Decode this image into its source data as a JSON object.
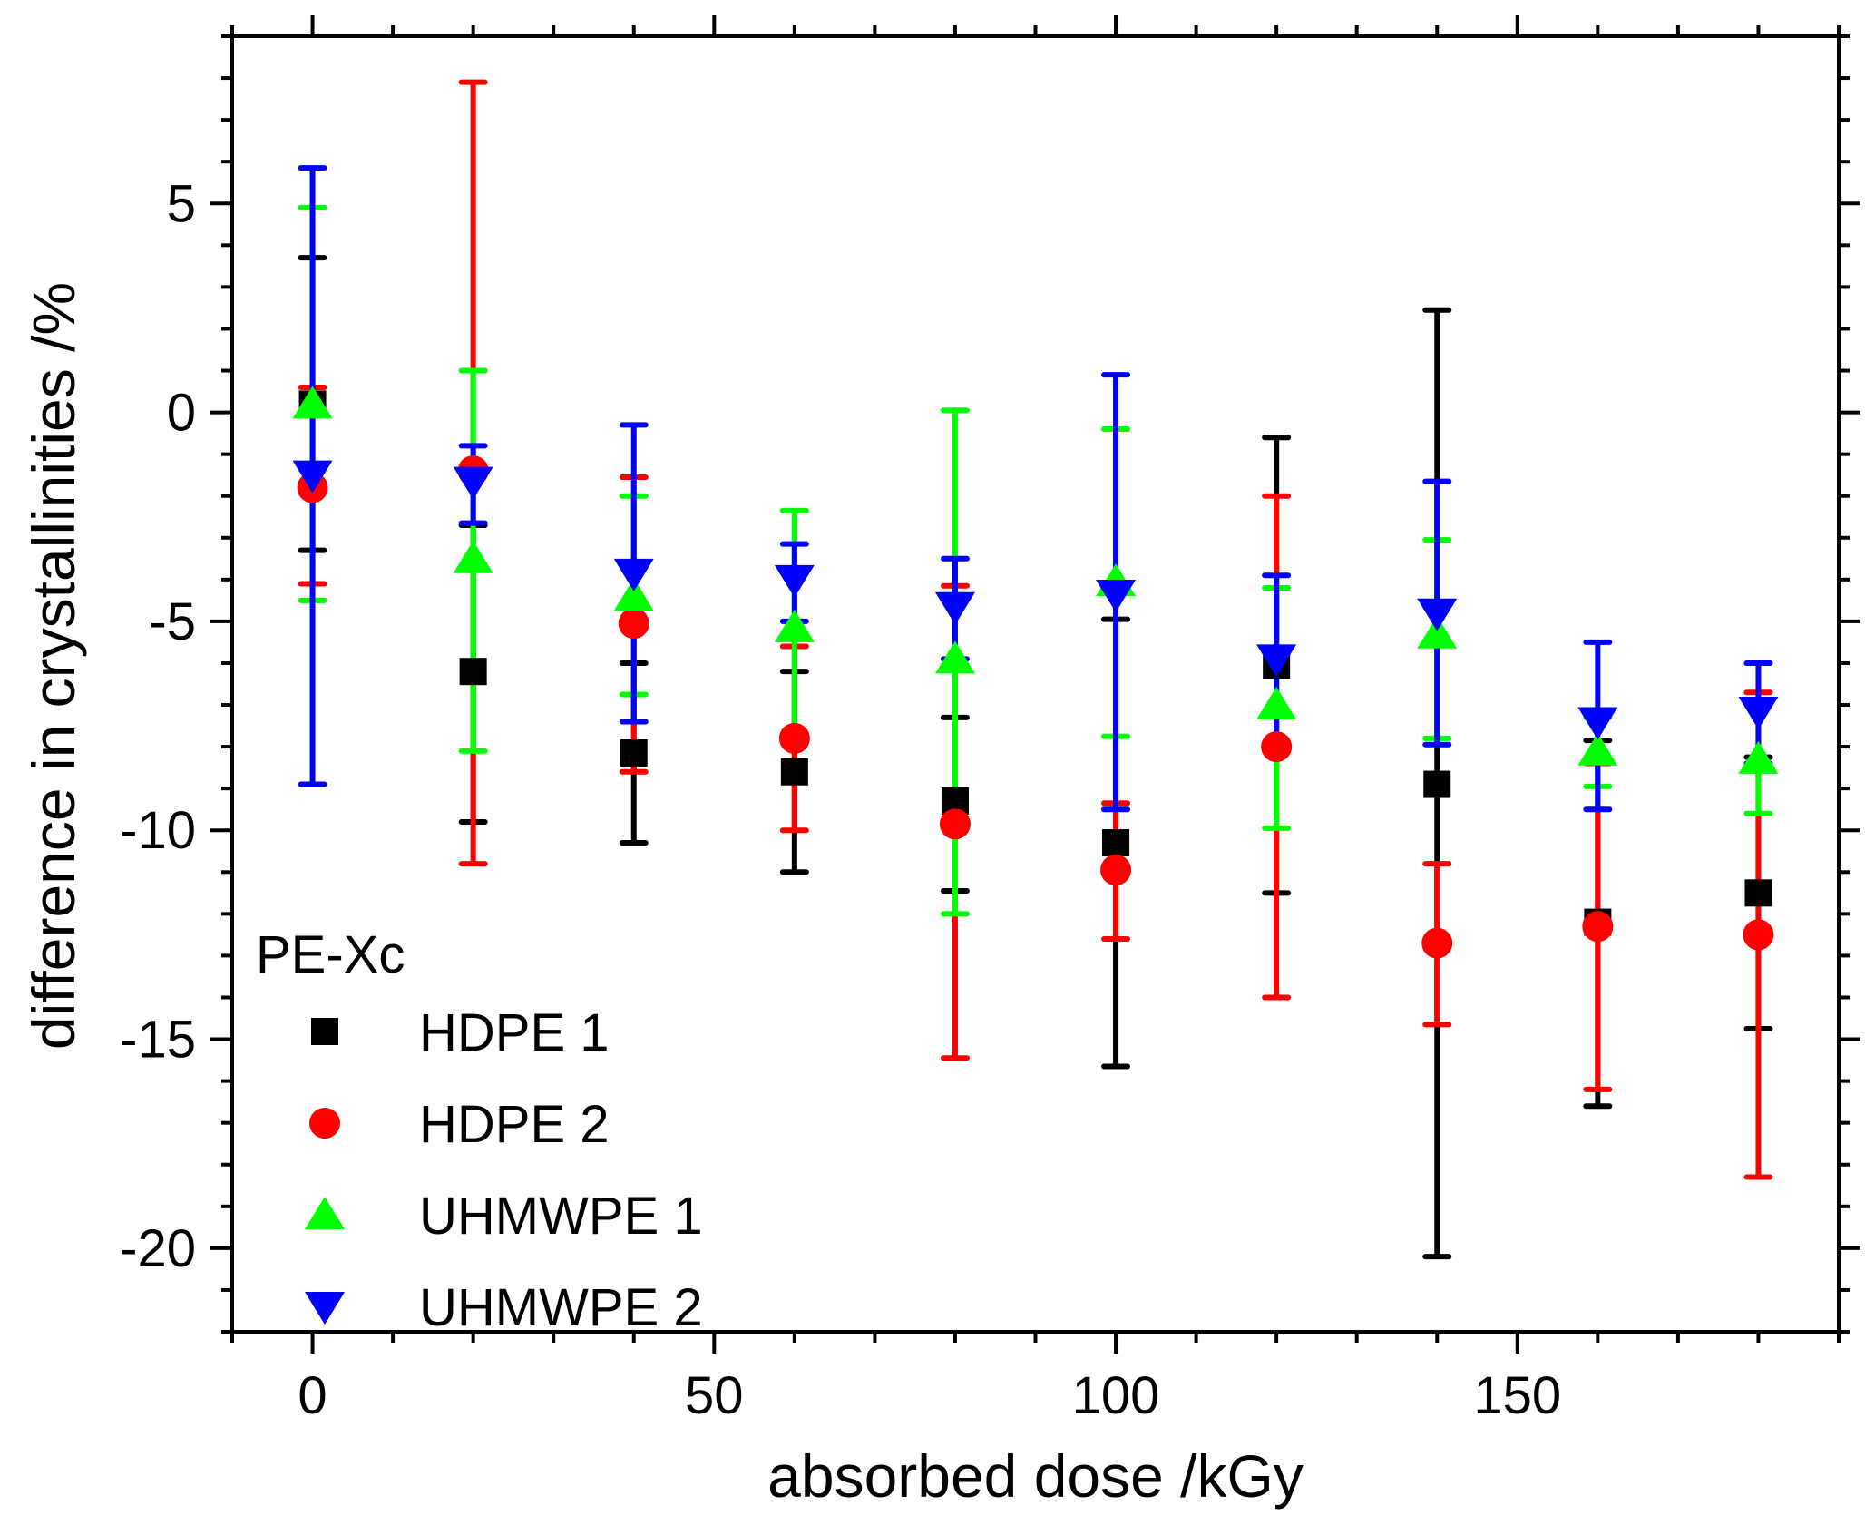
{
  "chart_data": {
    "type": "scatter",
    "title": "",
    "xlabel": "absorbed dose /kGy",
    "ylabel": "difference in crystallinities /%",
    "xlim": [
      -10,
      190
    ],
    "ylim": [
      -22,
      9
    ],
    "x_major_ticks": [
      0,
      50,
      100,
      150
    ],
    "x_minor_step": 10,
    "y_major_ticks": [
      5,
      0,
      -5,
      -10,
      -15,
      -20
    ],
    "y_minor_step": 1,
    "x_tick_labels": [
      "0",
      "50",
      "100",
      "150"
    ],
    "y_tick_labels": [
      "5",
      "0",
      "-5",
      "-10",
      "-15",
      "-20"
    ],
    "grid": false,
    "legend": {
      "title": "PE-Xc",
      "placement": "bottom-left"
    },
    "x": [
      0,
      20,
      40,
      60,
      80,
      100,
      120,
      140,
      160,
      180
    ],
    "series": [
      {
        "name": "HDPE 1",
        "marker": "square",
        "color": "#000000",
        "values": [
          0.2,
          -6.2,
          -8.15,
          -8.6,
          -9.3,
          -10.3,
          -6.05,
          -8.9,
          -12.2,
          -11.5
        ],
        "err_upper": [
          3.7,
          -2.7,
          -6.0,
          -6.2,
          -7.3,
          -4.95,
          -0.6,
          2.45,
          -7.85,
          -8.25
        ],
        "err_lower": [
          -3.3,
          -9.8,
          -10.3,
          -11.0,
          -11.45,
          -15.65,
          -11.5,
          -20.2,
          -16.6,
          -14.75
        ]
      },
      {
        "name": "HDPE 2",
        "marker": "circle",
        "color": "#ff0000",
        "values": [
          -1.8,
          -1.4,
          -5.05,
          -7.8,
          -9.85,
          -10.95,
          -8.0,
          -12.7,
          -12.3,
          -12.5
        ],
        "err_upper": [
          0.6,
          7.9,
          -1.55,
          -5.6,
          -4.15,
          -9.35,
          -2.0,
          -10.8,
          -8.4,
          -6.7
        ],
        "err_lower": [
          -4.1,
          -10.8,
          -8.6,
          -10.0,
          -15.45,
          -12.6,
          -14.0,
          -14.65,
          -16.2,
          -18.3
        ]
      },
      {
        "name": "UHMWPE 1",
        "marker": "triangle-up",
        "color": "#00ff00",
        "values": [
          0.2,
          -3.5,
          -4.4,
          -5.15,
          -5.9,
          -4.05,
          -7.0,
          -5.3,
          -8.1,
          -8.3
        ],
        "err_upper": [
          4.9,
          1.0,
          -2.0,
          -2.35,
          0.05,
          -0.4,
          -4.2,
          -3.05,
          -7.3,
          -6.9
        ],
        "err_lower": [
          -4.5,
          -8.1,
          -6.75,
          -7.85,
          -12.0,
          -7.75,
          -9.95,
          -7.8,
          -8.95,
          -9.6
        ]
      },
      {
        "name": "UHMWPE 2",
        "marker": "triangle-down",
        "color": "#0000ff",
        "values": [
          -1.5,
          -1.65,
          -3.85,
          -4.0,
          -4.65,
          -4.35,
          -5.9,
          -4.8,
          -7.4,
          -7.15
        ],
        "err_upper": [
          5.85,
          -0.8,
          -0.3,
          -3.15,
          -3.5,
          0.9,
          -3.9,
          -1.65,
          -5.5,
          -6.0
        ],
        "err_lower": [
          -8.9,
          -2.65,
          -7.4,
          -5.0,
          -5.9,
          -9.5,
          -7.9,
          -7.95,
          -9.5,
          -8.4
        ]
      }
    ]
  }
}
